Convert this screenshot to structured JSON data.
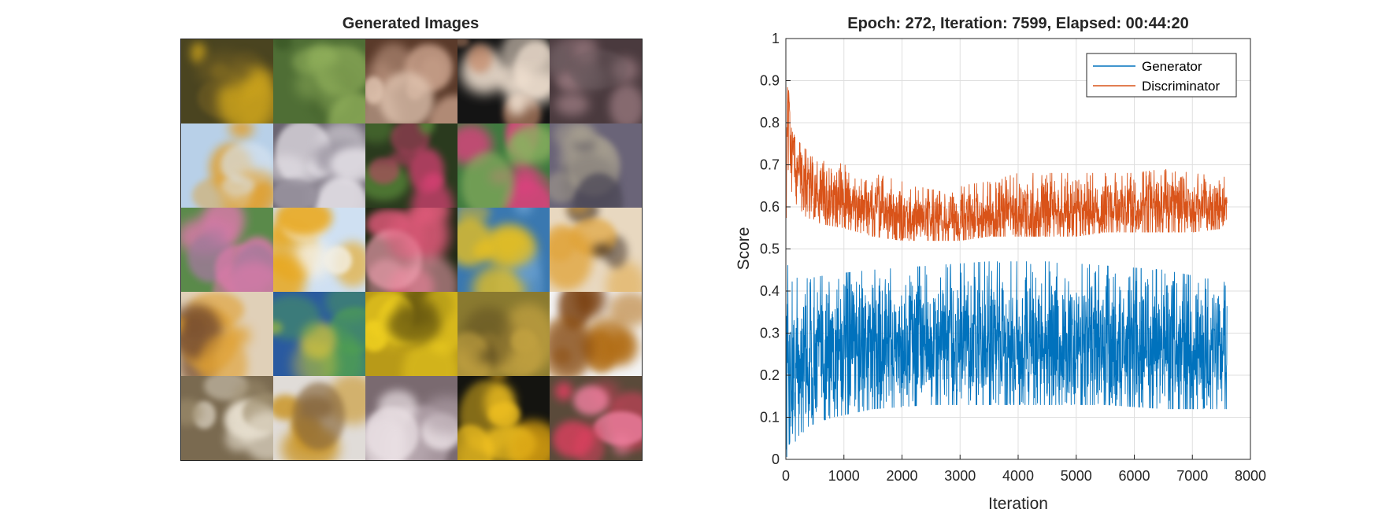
{
  "left_panel": {
    "title": "Generated Images",
    "tiles": [
      {
        "bg": "#4a4420",
        "accent": "#c9a11c",
        "accent2": "#6b5a22"
      },
      {
        "bg": "#4f6e35",
        "accent": "#8fae5a",
        "accent2": "#3d5a28"
      },
      {
        "bg": "#5a3a2a",
        "accent": "#c8a08a",
        "accent2": "#e0c4b0"
      },
      {
        "bg": "#141414",
        "accent": "#f0e0d0",
        "accent2": "#c48a6a"
      },
      {
        "bg": "#4a3a3e",
        "accent": "#9a7a80",
        "accent2": "#6a5a5e"
      },
      {
        "bg": "#b8d0e8",
        "accent": "#e0a030",
        "accent2": "#d8e4f0"
      },
      {
        "bg": "#6a6470",
        "accent": "#e8e4ea",
        "accent2": "#9a94a0"
      },
      {
        "bg": "#2a3a1e",
        "accent": "#d04070",
        "accent2": "#5a8a3a"
      },
      {
        "bg": "#3f7a3f",
        "accent": "#e04080",
        "accent2": "#8ab060"
      },
      {
        "bg": "#6a6478",
        "accent": "#a8a090",
        "accent2": "#4e4a58"
      },
      {
        "bg": "#5a8a4a",
        "accent": "#d87aa8",
        "accent2": "#a07a9a"
      },
      {
        "bg": "#cfe0f2",
        "accent": "#e8a820",
        "accent2": "#f4f0e4"
      },
      {
        "bg": "#1e2a14",
        "accent": "#e05a7a",
        "accent2": "#f0a0b0"
      },
      {
        "bg": "#3a78b0",
        "accent": "#e8c020",
        "accent2": "#6aa0d0"
      },
      {
        "bg": "#e8d8c0",
        "accent": "#e0a030",
        "accent2": "#3a2a20"
      },
      {
        "bg": "#e0d0b8",
        "accent": "#e0a030",
        "accent2": "#7a5030"
      },
      {
        "bg": "#2a5aa0",
        "accent": "#50a050",
        "accent2": "#d0c040"
      },
      {
        "bg": "#b89a18",
        "accent": "#f0d020",
        "accent2": "#6a5a10"
      },
      {
        "bg": "#8a7a30",
        "accent": "#c0a040",
        "accent2": "#5a4a20"
      },
      {
        "bg": "#f4f4f4",
        "accent": "#b06a10",
        "accent2": "#7a4010"
      },
      {
        "bg": "#7a6a50",
        "accent": "#e8e0d0",
        "accent2": "#a09070"
      },
      {
        "bg": "#e0dcd8",
        "accent": "#c8901a",
        "accent2": "#8a6a40"
      },
      {
        "bg": "#7a6a70",
        "accent": "#eae0e4",
        "accent2": "#b0a0a8"
      },
      {
        "bg": "#141410",
        "accent": "#f0c020",
        "accent2": "#d8a010"
      },
      {
        "bg": "#5a4a3a",
        "accent": "#e04060",
        "accent2": "#f080a0"
      }
    ]
  },
  "chart_data": {
    "type": "line",
    "title": "Epoch: 272, Iteration: 7599, Elapsed: 00:44:20",
    "xlabel": "Iteration",
    "ylabel": "Score",
    "xlim": [
      0,
      8000
    ],
    "ylim": [
      0,
      1
    ],
    "xticks": [
      "0",
      "1000",
      "2000",
      "3000",
      "4000",
      "5000",
      "6000",
      "7000",
      "8000"
    ],
    "yticks": [
      "0",
      "0.1",
      "0.2",
      "0.3",
      "0.4",
      "0.5",
      "0.6",
      "0.7",
      "0.8",
      "0.9",
      "1"
    ],
    "grid": true,
    "legend_position": "top-right",
    "x_end": 7599,
    "series": [
      {
        "name": "Generator",
        "color": "#0072bd",
        "envelope_x": [
          0,
          50,
          200,
          400,
          800,
          1500,
          2500,
          3500,
          4500,
          5500,
          6500,
          7599
        ],
        "envelope_mean": [
          0.2,
          0.2,
          0.22,
          0.24,
          0.26,
          0.27,
          0.27,
          0.27,
          0.27,
          0.27,
          0.26,
          0.26
        ],
        "envelope_low": [
          0.0,
          0.02,
          0.05,
          0.08,
          0.1,
          0.12,
          0.13,
          0.13,
          0.13,
          0.13,
          0.12,
          0.12
        ],
        "envelope_high": [
          0.48,
          0.45,
          0.43,
          0.43,
          0.44,
          0.45,
          0.46,
          0.47,
          0.47,
          0.46,
          0.45,
          0.42
        ]
      },
      {
        "name": "Discriminator",
        "color": "#d95319",
        "envelope_x": [
          0,
          30,
          100,
          300,
          600,
          1000,
          1500,
          2000,
          2500,
          3000,
          3500,
          4000,
          4500,
          5000,
          5500,
          6000,
          6500,
          7000,
          7599
        ],
        "envelope_mean": [
          0.6,
          0.85,
          0.72,
          0.66,
          0.63,
          0.61,
          0.59,
          0.575,
          0.57,
          0.575,
          0.58,
          0.585,
          0.59,
          0.59,
          0.59,
          0.595,
          0.6,
          0.6,
          0.6
        ],
        "envelope_low": [
          0.5,
          0.7,
          0.6,
          0.58,
          0.56,
          0.55,
          0.53,
          0.52,
          0.52,
          0.52,
          0.53,
          0.53,
          0.53,
          0.53,
          0.54,
          0.54,
          0.54,
          0.54,
          0.55
        ],
        "envelope_high": [
          0.65,
          0.91,
          0.78,
          0.74,
          0.72,
          0.7,
          0.68,
          0.66,
          0.64,
          0.65,
          0.66,
          0.68,
          0.68,
          0.68,
          0.68,
          0.68,
          0.69,
          0.68,
          0.67
        ]
      }
    ]
  }
}
